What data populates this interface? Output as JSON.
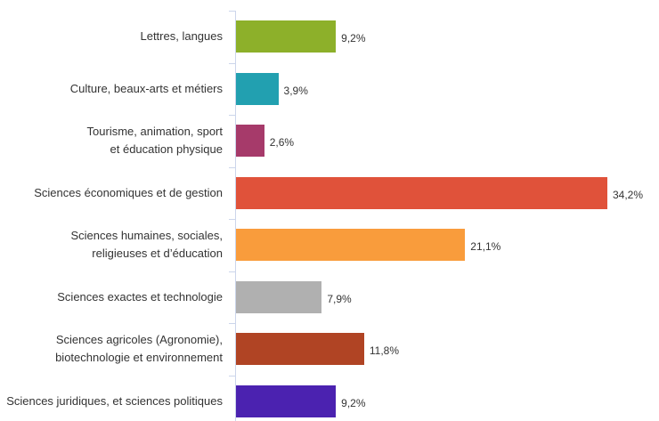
{
  "chart_data": {
    "type": "bar",
    "orientation": "horizontal",
    "categories": [
      "Lettres, langues",
      "Culture, beaux-arts et métiers",
      "Tourisme, animation, sport et éducation physique",
      "Sciences économiques et de gestion",
      "Sciences humaines, sociales, religieuses et d’éducation",
      "Sciences exactes et technologie",
      "Sciences agricoles (Agronomie), biotechnologie et environnement",
      "Sciences juridiques, et sciences politiques"
    ],
    "values": [
      9.2,
      3.9,
      2.6,
      34.2,
      21.1,
      7.9,
      11.8,
      9.2
    ],
    "value_labels": [
      "9,2%",
      "3,9%",
      "2,6%",
      "34,2%",
      "21,1%",
      "7,9%",
      "11,8%",
      "9,2%"
    ],
    "colors": [
      "#8db02a",
      "#22a0b0",
      "#a63a6a",
      "#e0523a",
      "#f99c3c",
      "#b0b0b0",
      "#b04424",
      "#4b22b0"
    ]
  }
}
